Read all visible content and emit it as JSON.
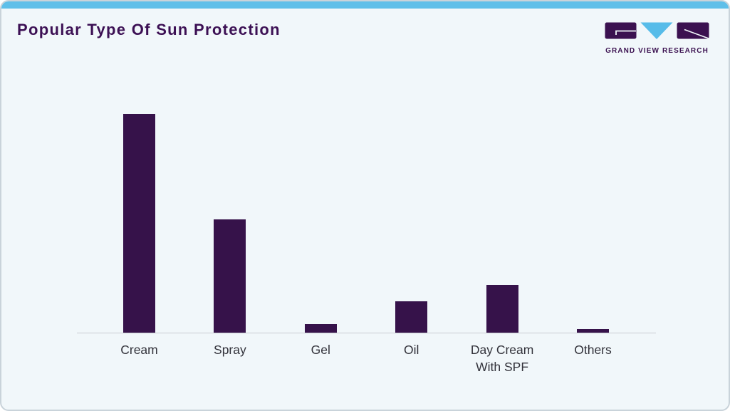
{
  "card": {
    "title": "Popular Type Of Sun Protection"
  },
  "logo": {
    "name": "Grand View Research",
    "text": "GRAND VIEW RESEARCH"
  },
  "colors": {
    "accent_top": "#5fbfe9",
    "bar_fill": "#36124a",
    "title_text": "#3c1054",
    "logo_purple": "#3b1150",
    "logo_triangle": "#57bce9",
    "card_background": "#f1f7fa",
    "axis_line": "#c9ccd1",
    "label_text": "#32323a",
    "card_border": "#c9d3da"
  },
  "chart_data": {
    "type": "bar",
    "title": "Popular Type Of Sun Protection",
    "categories": [
      "Cream",
      "Spray",
      "Gel",
      "Oil",
      "Day Cream With SPF",
      "Others"
    ],
    "values": [
      52,
      27,
      2,
      7.4,
      11.4,
      0.9
    ],
    "values_note": "estimated relative share (%); y-axis is unlabeled in the figure",
    "xlabel": "",
    "ylabel": "",
    "ylim": [
      0,
      55
    ],
    "grid": false,
    "legend": false,
    "bar_color": "#36124a"
  }
}
